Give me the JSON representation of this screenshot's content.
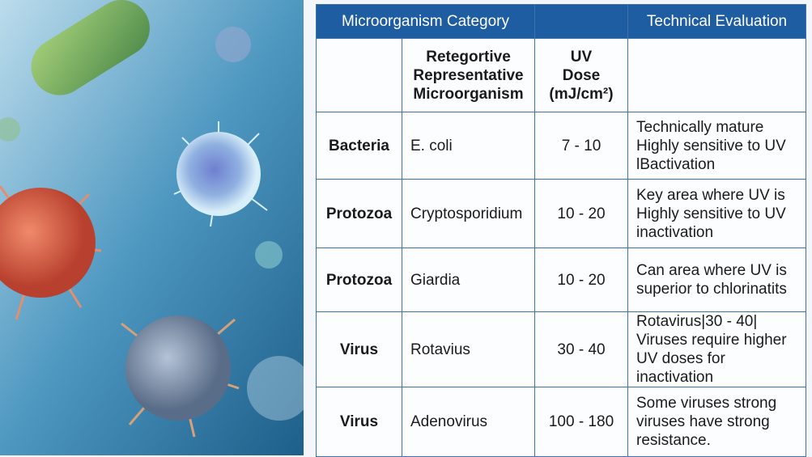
{
  "table": {
    "header": [
      "Microorganism Category",
      "Technical Evaluation"
    ],
    "subheader": {
      "organism": [
        "Retegortive",
        "Representative",
        "Microorganism"
      ],
      "dose": [
        "UV",
        "Dose",
        "(mJ/cm²)"
      ]
    },
    "rows": [
      {
        "category": "Bacteria",
        "organism": "E. coli",
        "dose": "7 - 10",
        "evaluation": [
          "Technically mature",
          "Highly sensitive to UV",
          "lBactivation"
        ]
      },
      {
        "category": "Protozoa",
        "organism": "Cryptosporidium",
        "dose": "10 - 20",
        "evaluation": [
          "Key area where UV is",
          "Highly sensitive to UV",
          "inactivation"
        ]
      },
      {
        "category": "Protozoa",
        "organism": "Giardia",
        "dose": "10 - 20",
        "evaluation": [
          "Can area where UV is",
          "superior to chlorinatits"
        ]
      },
      {
        "category": "Virus",
        "organism": "Rotavius",
        "dose": "30 - 40",
        "evaluation": [
          "Rotavirus|30 - 40|",
          "Viruses require higher",
          "UV doses for inactivation"
        ]
      },
      {
        "category": "Virus",
        "organism": "Adenovirus",
        "dose": "100 - 180",
        "evaluation": [
          "Some viruses strong",
          "viruses have strong",
          "resistance."
        ]
      }
    ]
  }
}
